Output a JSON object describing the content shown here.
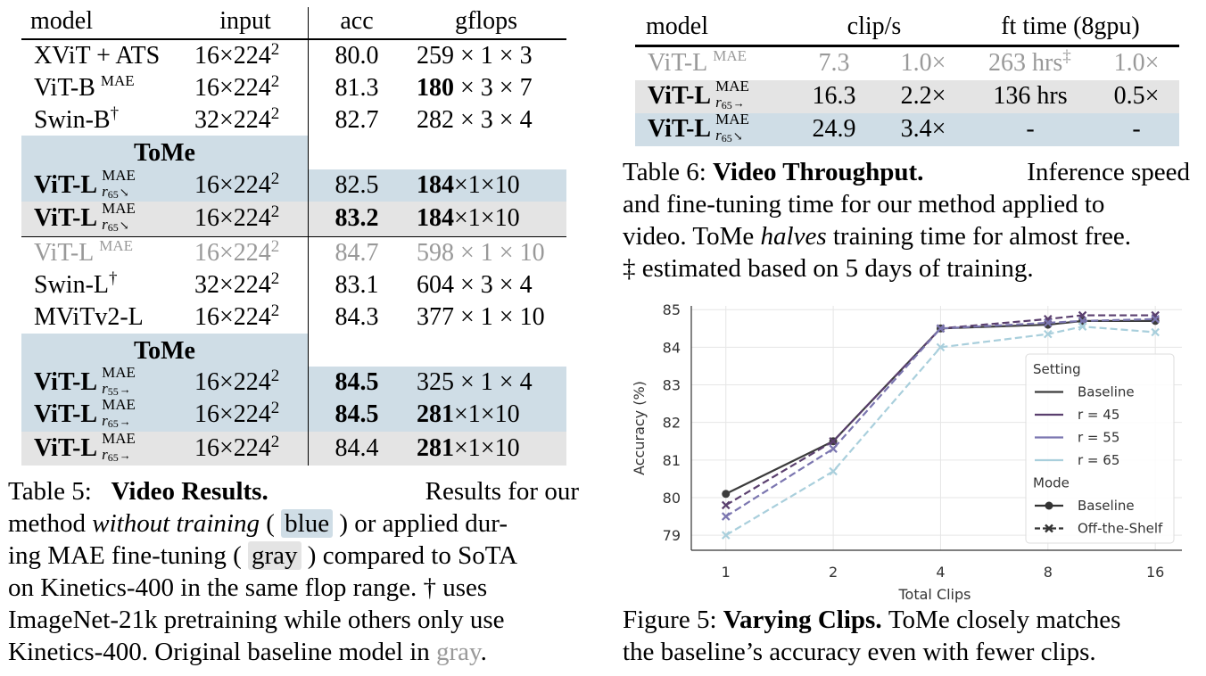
{
  "table5": {
    "headers": [
      "model",
      "input",
      "acc",
      "gflops"
    ],
    "tome_label": "ToMe",
    "rows": [
      {
        "model": "XViT + ATS",
        "sup": "",
        "input": "16×224",
        "acc": "80.0",
        "gflops": "259 × 1 × 3"
      },
      {
        "model": "ViT-B",
        "sup": "MAE",
        "input": "16×224",
        "acc": "81.3",
        "gflops_bold": "180",
        "gflops": " × 3 × 7"
      },
      {
        "model": "Swin-B",
        "sup": "†",
        "input": "32×224",
        "acc": "82.7",
        "gflops": "282 × 3 × 4"
      },
      {
        "model": "ViT-L",
        "sup_top": "MAE",
        "sup_bot": "r",
        "sup_sub": "65",
        "input": "16×224",
        "acc": "82.5",
        "gflops_bold": "184",
        "gflops": "×1×10"
      },
      {
        "model": "ViT-L",
        "sup_top": "MAE",
        "sup_bot": "r",
        "sup_sub": "65",
        "input": "16×224",
        "acc": "83.2",
        "gflops_bold": "184",
        "gflops": "×1×10"
      },
      {
        "model": "ViT-L",
        "sup": "MAE",
        "input": "16×224",
        "acc": "84.7",
        "gflops": "598 × 1 × 10"
      },
      {
        "model": "Swin-L",
        "sup": "†",
        "input": "32×224",
        "acc": "83.1",
        "gflops": "604 × 3 × 4"
      },
      {
        "model": "MViTv2-L",
        "sup": "",
        "input": "16×224",
        "acc": "84.3",
        "gflops": "377 × 1 × 10"
      },
      {
        "model": "ViT-L",
        "sup_top": "MAE",
        "sup_bot": "r",
        "sup_sub": "55",
        "input": "16×224",
        "acc": "84.5",
        "gflops": "325 × 1 × 4"
      },
      {
        "model": "ViT-L",
        "sup_top": "MAE",
        "sup_bot": "r",
        "sup_sub": "65",
        "input": "16×224",
        "acc": "84.5",
        "gflops_bold": "281",
        "gflops": "×1×10"
      },
      {
        "model": "ViT-L",
        "sup_top": "MAE",
        "sup_bot": "r",
        "sup_sub": "65",
        "input": "16×224",
        "acc": "84.4",
        "gflops_bold": "281",
        "gflops": "×1×10"
      }
    ],
    "input_exp": "2",
    "caption": {
      "label": "Table 5:",
      "title": "Video Results.",
      "l1_rest": "Results for our",
      "l2_a": "method ",
      "l2_em": "without training",
      "l2_b": " ( ",
      "l2_blue": "blue",
      "l2_c": " ) or applied dur-",
      "l3_a": "ing MAE fine-tuning ( ",
      "l3_gray": "gray",
      "l3_b": " ) compared to SoTA",
      "l4": "on Kinetics-400 in the same flop range. † uses",
      "l5": "ImageNet-21k pretraining while others only use",
      "l6_a": "Kinetics-400. Original baseline model in ",
      "l6_gray": "gray",
      "l6_b": "."
    }
  },
  "table6": {
    "headers": [
      "model",
      "clip/s",
      "ft time (8gpu)"
    ],
    "rows": [
      {
        "model": "ViT-L",
        "sup": "MAE",
        "clips": "7.3",
        "clip_x": "1.0×",
        "ft": "263 hrs",
        "ft_sup": "‡",
        "ft_x": "1.0×"
      },
      {
        "model": "ViT-L",
        "sup_top": "MAE",
        "sup_bot": "r",
        "sup_sub": "65",
        "clips": "16.3",
        "clip_x": "2.2×",
        "ft": "136 hrs",
        "ft_x": "0.5×"
      },
      {
        "model": "ViT-L",
        "sup_top": "MAE",
        "sup_bot": "r",
        "sup_sub": "65",
        "clips": "24.9",
        "clip_x": "3.4×",
        "ft": "-",
        "ft_x": "-"
      }
    ],
    "caption": {
      "label": "Table 6:",
      "title": "Video Throughput.",
      "l1_rest": "Inference speed",
      "l2": "and fine-tuning time for our method applied to",
      "l3_a": "video. ToMe ",
      "l3_em": "halves",
      "l3_b": " training time for almost free.",
      "l4": "‡ estimated based on 5 days of training."
    }
  },
  "figure5": {
    "caption": {
      "label": "Figure 5:",
      "title": "Varying Clips.",
      "l1_rest": "ToMe closely matches",
      "l2": "the baseline’s accuracy even with fewer clips."
    }
  },
  "chart_data": {
    "type": "line",
    "xlabel": "Total Clips",
    "ylabel": "Accuracy (%)",
    "x_scale": "log2",
    "x": [
      1,
      2,
      4,
      8,
      10,
      16
    ],
    "xticks": [
      1,
      2,
      4,
      8,
      16
    ],
    "yticks": [
      79,
      80,
      81,
      82,
      83,
      84,
      85
    ],
    "ylim": [
      78.6,
      85.1
    ],
    "grid": true,
    "legend": {
      "position": "right",
      "setting_title": "Setting",
      "mode_title": "Mode",
      "mode_entries": [
        "Baseline",
        "Off-the-Shelf"
      ]
    },
    "series": [
      {
        "name": "Baseline",
        "color": "#3c3c3c",
        "style": "solid",
        "marker": "circle",
        "values": [
          80.1,
          81.5,
          84.5,
          84.6,
          84.7,
          84.7
        ]
      },
      {
        "name": "r = 45",
        "color": "#5a3f6e",
        "style": "dashed",
        "marker": "x",
        "values": [
          79.8,
          81.5,
          84.5,
          84.75,
          84.85,
          84.85
        ]
      },
      {
        "name": "r = 55",
        "color": "#7b76b0",
        "style": "dashed",
        "marker": "x",
        "values": [
          79.5,
          81.3,
          84.5,
          84.65,
          84.7,
          84.75
        ]
      },
      {
        "name": "r = 65",
        "color": "#a9cfdc",
        "style": "dashed",
        "marker": "x",
        "values": [
          79.0,
          80.7,
          84.0,
          84.35,
          84.55,
          84.4
        ]
      }
    ]
  }
}
